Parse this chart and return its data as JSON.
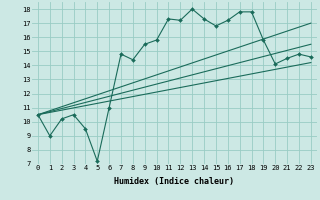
{
  "title": "",
  "xlabel": "Humidex (Indice chaleur)",
  "bg_color": "#cce8e4",
  "grid_color": "#99ccc4",
  "line_color": "#1a6b5a",
  "xlim": [
    -0.5,
    23.5
  ],
  "ylim": [
    7,
    18.5
  ],
  "xticks": [
    0,
    1,
    2,
    3,
    4,
    5,
    6,
    7,
    8,
    9,
    10,
    11,
    12,
    13,
    14,
    15,
    16,
    17,
    18,
    19,
    20,
    21,
    22,
    23
  ],
  "yticks": [
    7,
    8,
    9,
    10,
    11,
    12,
    13,
    14,
    15,
    16,
    17,
    18
  ],
  "line1_x": [
    0,
    1,
    2,
    3,
    4,
    5,
    6,
    7,
    8,
    9,
    10,
    11,
    12,
    13,
    14,
    15,
    16,
    17,
    18,
    19,
    20,
    21,
    22,
    23
  ],
  "line1_y": [
    10.5,
    9.0,
    10.2,
    10.5,
    9.5,
    7.2,
    11.0,
    14.8,
    14.4,
    15.5,
    15.8,
    17.3,
    17.2,
    18.0,
    17.3,
    16.8,
    17.2,
    17.8,
    17.8,
    15.8,
    14.1,
    14.5,
    14.8,
    14.6
  ],
  "line2_x": [
    0,
    23
  ],
  "line2_y": [
    10.5,
    17.0
  ],
  "line3_x": [
    0,
    23
  ],
  "line3_y": [
    10.5,
    15.5
  ],
  "line4_x": [
    0,
    23
  ],
  "line4_y": [
    10.5,
    14.2
  ],
  "tick_fontsize": 5.0,
  "xlabel_fontsize": 6.0
}
